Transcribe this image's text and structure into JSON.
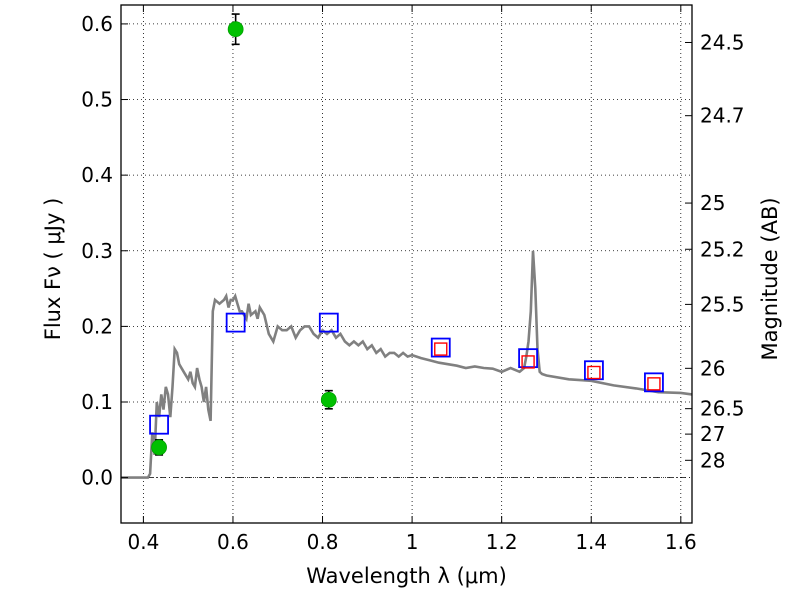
{
  "chart_data": {
    "type": "scatter",
    "xlabel": "Wavelength  λ (μm)",
    "ylabel": "Flux  Fν  ( μJy )",
    "y2label": "Magnitude (AB)",
    "xlim": [
      0.35,
      1.625
    ],
    "ylim": [
      -0.06,
      0.625
    ],
    "grid": true,
    "x_ticks": [
      {
        "value": 0.4,
        "label": "0.4"
      },
      {
        "value": 0.6,
        "label": "0.6"
      },
      {
        "value": 0.8,
        "label": "0.8"
      },
      {
        "value": 1.0,
        "label": "1"
      },
      {
        "value": 1.2,
        "label": "1.2"
      },
      {
        "value": 1.4,
        "label": "1.4"
      },
      {
        "value": 1.6,
        "label": "1.6"
      }
    ],
    "y_ticks": [
      {
        "value": 0.0,
        "label": "0.0"
      },
      {
        "value": 0.1,
        "label": "0.1"
      },
      {
        "value": 0.2,
        "label": "0.2"
      },
      {
        "value": 0.3,
        "label": "0.3"
      },
      {
        "value": 0.4,
        "label": "0.4"
      },
      {
        "value": 0.5,
        "label": "0.5"
      },
      {
        "value": 0.6,
        "label": "0.6"
      }
    ],
    "magnitude_ticks": [
      {
        "value": 24.5,
        "label": "24.5"
      },
      {
        "value": 24.7,
        "label": "24.7"
      },
      {
        "value": 25.0,
        "label": "25"
      },
      {
        "value": 25.2,
        "label": "25.2"
      },
      {
        "value": 25.5,
        "label": "25.5"
      },
      {
        "value": 26.0,
        "label": "26"
      },
      {
        "value": 26.5,
        "label": "26.5"
      },
      {
        "value": 27.0,
        "label": "27"
      },
      {
        "value": 28.0,
        "label": "28"
      }
    ],
    "zero_line": 0.0,
    "series": [
      {
        "kind": "line",
        "color": "#808080",
        "x": [
          0.35,
          0.4,
          0.41,
          0.415,
          0.42,
          0.425,
          0.43,
          0.435,
          0.44,
          0.445,
          0.45,
          0.455,
          0.46,
          0.465,
          0.47,
          0.475,
          0.48,
          0.49,
          0.5,
          0.505,
          0.51,
          0.515,
          0.52,
          0.525,
          0.53,
          0.535,
          0.54,
          0.545,
          0.55,
          0.555,
          0.56,
          0.57,
          0.58,
          0.585,
          0.59,
          0.595,
          0.6,
          0.605,
          0.61,
          0.615,
          0.62,
          0.63,
          0.635,
          0.64,
          0.65,
          0.655,
          0.66,
          0.67,
          0.68,
          0.69,
          0.7,
          0.71,
          0.72,
          0.73,
          0.74,
          0.75,
          0.76,
          0.77,
          0.78,
          0.79,
          0.8,
          0.81,
          0.82,
          0.83,
          0.84,
          0.85,
          0.86,
          0.87,
          0.88,
          0.89,
          0.9,
          0.91,
          0.92,
          0.93,
          0.94,
          0.95,
          0.96,
          0.97,
          0.98,
          0.99,
          1.0,
          1.02,
          1.04,
          1.06,
          1.08,
          1.1,
          1.12,
          1.14,
          1.16,
          1.18,
          1.2,
          1.22,
          1.24,
          1.25,
          1.255,
          1.26,
          1.265,
          1.27,
          1.275,
          1.28,
          1.285,
          1.29,
          1.3,
          1.35,
          1.4,
          1.45,
          1.5,
          1.55,
          1.6,
          1.625
        ],
        "y": [
          0.0,
          0.0,
          0.0,
          0.005,
          0.06,
          0.03,
          0.1,
          0.08,
          0.11,
          0.09,
          0.12,
          0.11,
          0.08,
          0.12,
          0.17,
          0.165,
          0.15,
          0.14,
          0.13,
          0.14,
          0.125,
          0.12,
          0.145,
          0.13,
          0.12,
          0.1,
          0.12,
          0.09,
          0.075,
          0.22,
          0.235,
          0.23,
          0.235,
          0.24,
          0.225,
          0.235,
          0.235,
          0.24,
          0.23,
          0.22,
          0.22,
          0.21,
          0.23,
          0.215,
          0.22,
          0.21,
          0.225,
          0.215,
          0.19,
          0.18,
          0.2,
          0.195,
          0.195,
          0.2,
          0.185,
          0.195,
          0.2,
          0.2,
          0.19,
          0.185,
          0.195,
          0.19,
          0.195,
          0.185,
          0.19,
          0.18,
          0.175,
          0.18,
          0.175,
          0.18,
          0.17,
          0.175,
          0.165,
          0.17,
          0.16,
          0.165,
          0.165,
          0.16,
          0.165,
          0.16,
          0.162,
          0.158,
          0.155,
          0.152,
          0.15,
          0.148,
          0.145,
          0.147,
          0.145,
          0.144,
          0.14,
          0.145,
          0.14,
          0.145,
          0.16,
          0.18,
          0.22,
          0.3,
          0.25,
          0.17,
          0.14,
          0.137,
          0.135,
          0.13,
          0.128,
          0.122,
          0.118,
          0.113,
          0.112,
          0.11
        ]
      },
      {
        "kind": "observed",
        "color": "#00c000",
        "x": [
          0.435,
          0.606,
          0.814
        ],
        "y": [
          0.04,
          0.593,
          0.103
        ],
        "err": [
          0.01,
          0.02,
          0.012
        ]
      },
      {
        "kind": "model-blue",
        "color": "#0000ff",
        "x": [
          0.435,
          0.606,
          0.814,
          1.064,
          1.259,
          1.406,
          1.54
        ],
        "y": [
          0.07,
          0.205,
          0.205,
          0.172,
          0.158,
          0.142,
          0.126
        ]
      },
      {
        "kind": "model-red",
        "color": "#ff0000",
        "x": [
          1.064,
          1.259,
          1.406,
          1.54
        ],
        "y": [
          0.17,
          0.153,
          0.139,
          0.124
        ]
      }
    ]
  }
}
